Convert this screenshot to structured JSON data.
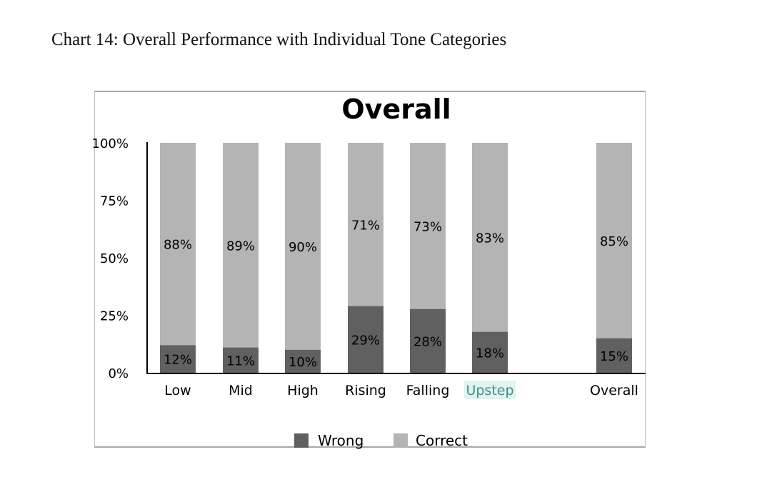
{
  "caption": "Chart 14: Overall Performance with Individual Tone Categories",
  "chart_data": {
    "type": "bar",
    "stacked": true,
    "percent": true,
    "title": "Overall",
    "xlabel": "",
    "ylabel": "",
    "ylim": [
      0,
      100
    ],
    "yticks": [
      "0%",
      "25%",
      "50%",
      "75%",
      "100%"
    ],
    "categories": [
      "Low",
      "Mid",
      "High",
      "Rising",
      "Falling",
      "Upstep",
      "Overall"
    ],
    "highlighted_category": "Upstep",
    "series": [
      {
        "name": "Wrong",
        "color": "#606060",
        "values": [
          12,
          11,
          10,
          29,
          28,
          18,
          15
        ],
        "labels": [
          "12%",
          "11%",
          "10%",
          "29%",
          "28%",
          "18%",
          "15%"
        ]
      },
      {
        "name": "Correct",
        "color": "#b4b4b4",
        "values": [
          88,
          89,
          90,
          71,
          73,
          83,
          85
        ],
        "labels": [
          "88%",
          "89%",
          "90%",
          "71%",
          "73%",
          "83%",
          "85%"
        ]
      }
    ],
    "legend": "bottom-center",
    "grid": false
  }
}
